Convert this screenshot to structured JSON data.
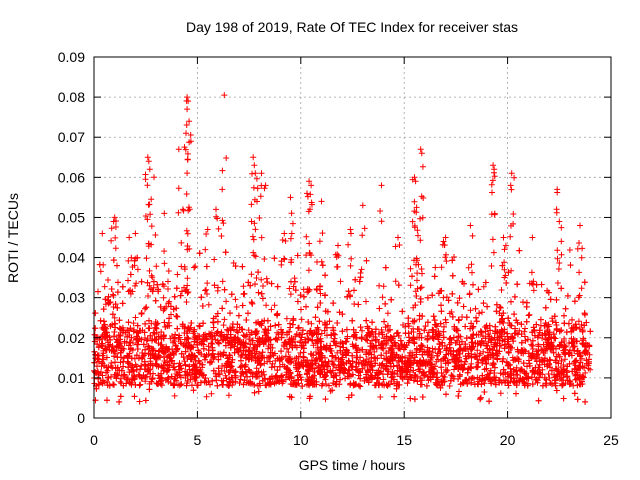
{
  "chart_data": {
    "type": "scatter",
    "title": "Day 198 of 2019, Rate Of TEC Index for receiver stas",
    "xlabel": "GPS time / hours",
    "ylabel": "ROTI / TECUs",
    "xlim": [
      0,
      25
    ],
    "ylim": [
      0,
      0.09
    ],
    "grid": true,
    "marker": "+",
    "color": "#ff0000",
    "x_ticks": [
      0,
      5,
      10,
      15,
      20,
      25
    ],
    "x_tick_labels": [
      "0",
      "5",
      "10",
      "15",
      "20",
      "25"
    ],
    "y_ticks": [
      0,
      0.01,
      0.02,
      0.03,
      0.04,
      0.05,
      0.06,
      0.07,
      0.08,
      0.09
    ],
    "y_tick_labels": [
      "0",
      "0.01",
      "0.02",
      "0.03",
      "0.04",
      "0.05",
      "0.06",
      "0.07",
      "0.08",
      "0.09"
    ],
    "data_range_hours": [
      0,
      24
    ],
    "typical_band": [
      0.008,
      0.025
    ],
    "outliers": [
      {
        "x": 4.5,
        "y": 0.08
      },
      {
        "x": 4.55,
        "y": 0.079
      },
      {
        "x": 4.5,
        "y": 0.077
      },
      {
        "x": 4.6,
        "y": 0.074
      },
      {
        "x": 4.45,
        "y": 0.071
      },
      {
        "x": 6.3,
        "y": 0.0805
      },
      {
        "x": 4.1,
        "y": 0.067
      },
      {
        "x": 2.6,
        "y": 0.065
      },
      {
        "x": 2.65,
        "y": 0.064
      },
      {
        "x": 2.7,
        "y": 0.062
      },
      {
        "x": 7.7,
        "y": 0.065
      },
      {
        "x": 7.75,
        "y": 0.063
      },
      {
        "x": 7.8,
        "y": 0.061
      },
      {
        "x": 8.1,
        "y": 0.061
      },
      {
        "x": 15.8,
        "y": 0.067
      },
      {
        "x": 15.85,
        "y": 0.066
      },
      {
        "x": 15.5,
        "y": 0.06
      },
      {
        "x": 15.55,
        "y": 0.059
      },
      {
        "x": 19.3,
        "y": 0.063
      },
      {
        "x": 19.35,
        "y": 0.062
      },
      {
        "x": 20.2,
        "y": 0.061
      },
      {
        "x": 20.15,
        "y": 0.058
      },
      {
        "x": 10.4,
        "y": 0.059
      },
      {
        "x": 10.5,
        "y": 0.058
      },
      {
        "x": 10.3,
        "y": 0.056
      },
      {
        "x": 13.9,
        "y": 0.058
      },
      {
        "x": 22.4,
        "y": 0.057
      },
      {
        "x": 2.9,
        "y": 0.06
      },
      {
        "x": 6.2,
        "y": 0.057
      },
      {
        "x": 8.3,
        "y": 0.058
      },
      {
        "x": 15.6,
        "y": 0.0525
      },
      {
        "x": 9.5,
        "y": 0.055
      },
      {
        "x": 11.0,
        "y": 0.054
      },
      {
        "x": 1.0,
        "y": 0.05
      },
      {
        "x": 0.95,
        "y": 0.049
      },
      {
        "x": 5.9,
        "y": 0.052
      },
      {
        "x": 13.0,
        "y": 0.053
      },
      {
        "x": 4.3,
        "y": 0.052
      },
      {
        "x": 3.4,
        "y": 0.051
      },
      {
        "x": 12.4,
        "y": 0.047
      },
      {
        "x": 14.7,
        "y": 0.045
      },
      {
        "x": 17.0,
        "y": 0.045
      },
      {
        "x": 18.2,
        "y": 0.048
      },
      {
        "x": 23.5,
        "y": 0.048
      },
      {
        "x": 21.2,
        "y": 0.045
      },
      {
        "x": 16.9,
        "y": 0.044
      },
      {
        "x": 19.8,
        "y": 0.045
      },
      {
        "x": 22.5,
        "y": 0.049
      },
      {
        "x": 0.4,
        "y": 0.046
      },
      {
        "x": 2.0,
        "y": 0.046
      },
      {
        "x": 9.2,
        "y": 0.046
      },
      {
        "x": 11.8,
        "y": 0.043
      },
      {
        "x": 1.7,
        "y": 0.045
      },
      {
        "x": 5.5,
        "y": 0.047
      }
    ]
  }
}
